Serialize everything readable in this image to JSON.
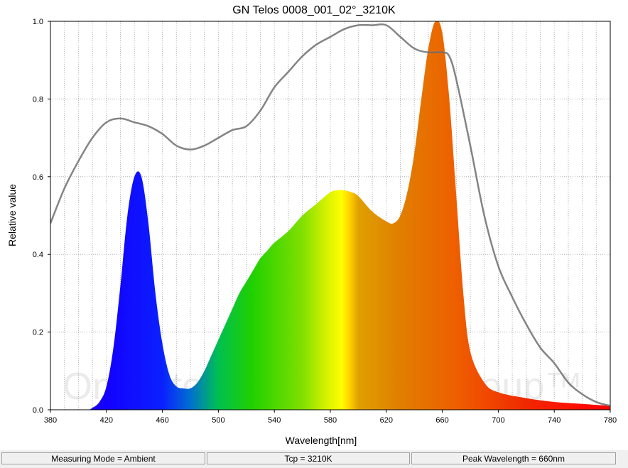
{
  "chart_data": {
    "type": "area",
    "title": "GN Telos 0008_001_02°_3210K",
    "xlabel": "Wavelength[nm]",
    "ylabel": "Relative value",
    "xlim": [
      380,
      780
    ],
    "ylim": [
      0,
      1.0
    ],
    "x_ticks": [
      "380",
      "420",
      "460",
      "500",
      "540",
      "580",
      "620",
      "660",
      "700",
      "740",
      "780"
    ],
    "y_ticks": [
      "0.0",
      "0.2",
      "0.4",
      "0.6",
      "0.8",
      "1.0"
    ],
    "grid": true,
    "watermark": "One Stop Grow Shop Group™",
    "series": [
      {
        "style": "filled spectrum",
        "x": [
          380,
          405,
          410,
          415,
          420,
          425,
          430,
          435,
          440,
          445,
          450,
          455,
          460,
          465,
          470,
          475,
          480,
          485,
          490,
          495,
          500,
          505,
          510,
          515,
          520,
          525,
          530,
          535,
          540,
          550,
          560,
          570,
          580,
          585,
          590,
          595,
          600,
          610,
          620,
          625,
          630,
          635,
          640,
          645,
          650,
          655,
          660,
          665,
          670,
          675,
          680,
          690,
          700,
          720,
          740,
          760,
          780
        ],
        "values": [
          0.0,
          0.0,
          0.005,
          0.02,
          0.06,
          0.16,
          0.32,
          0.5,
          0.6,
          0.6,
          0.48,
          0.3,
          0.17,
          0.09,
          0.06,
          0.055,
          0.055,
          0.07,
          0.1,
          0.14,
          0.18,
          0.22,
          0.26,
          0.3,
          0.33,
          0.36,
          0.39,
          0.41,
          0.43,
          0.46,
          0.5,
          0.53,
          0.56,
          0.565,
          0.565,
          0.56,
          0.55,
          0.51,
          0.485,
          0.48,
          0.5,
          0.56,
          0.66,
          0.8,
          0.93,
          1.0,
          0.97,
          0.8,
          0.55,
          0.3,
          0.15,
          0.07,
          0.045,
          0.03,
          0.02,
          0.015,
          0.01
        ]
      },
      {
        "style": "gray line",
        "x": [
          380,
          390,
          400,
          410,
          420,
          430,
          440,
          450,
          460,
          470,
          480,
          490,
          500,
          510,
          520,
          530,
          540,
          550,
          560,
          570,
          580,
          590,
          600,
          610,
          620,
          630,
          640,
          650,
          660,
          665,
          670,
          680,
          690,
          700,
          710,
          720,
          730,
          740,
          750,
          760,
          770,
          780
        ],
        "values": [
          0.48,
          0.57,
          0.64,
          0.7,
          0.74,
          0.75,
          0.74,
          0.73,
          0.71,
          0.68,
          0.67,
          0.68,
          0.7,
          0.72,
          0.73,
          0.77,
          0.83,
          0.87,
          0.91,
          0.94,
          0.96,
          0.98,
          0.99,
          0.99,
          0.99,
          0.96,
          0.93,
          0.92,
          0.92,
          0.91,
          0.85,
          0.68,
          0.5,
          0.37,
          0.29,
          0.22,
          0.16,
          0.12,
          0.07,
          0.04,
          0.02,
          0.01
        ]
      }
    ]
  },
  "status": {
    "measuring_mode": "Measuring Mode = Ambient",
    "tcp": "Tcp = 3210K",
    "peak_wavelength": "Peak Wavelength = 660nm"
  }
}
